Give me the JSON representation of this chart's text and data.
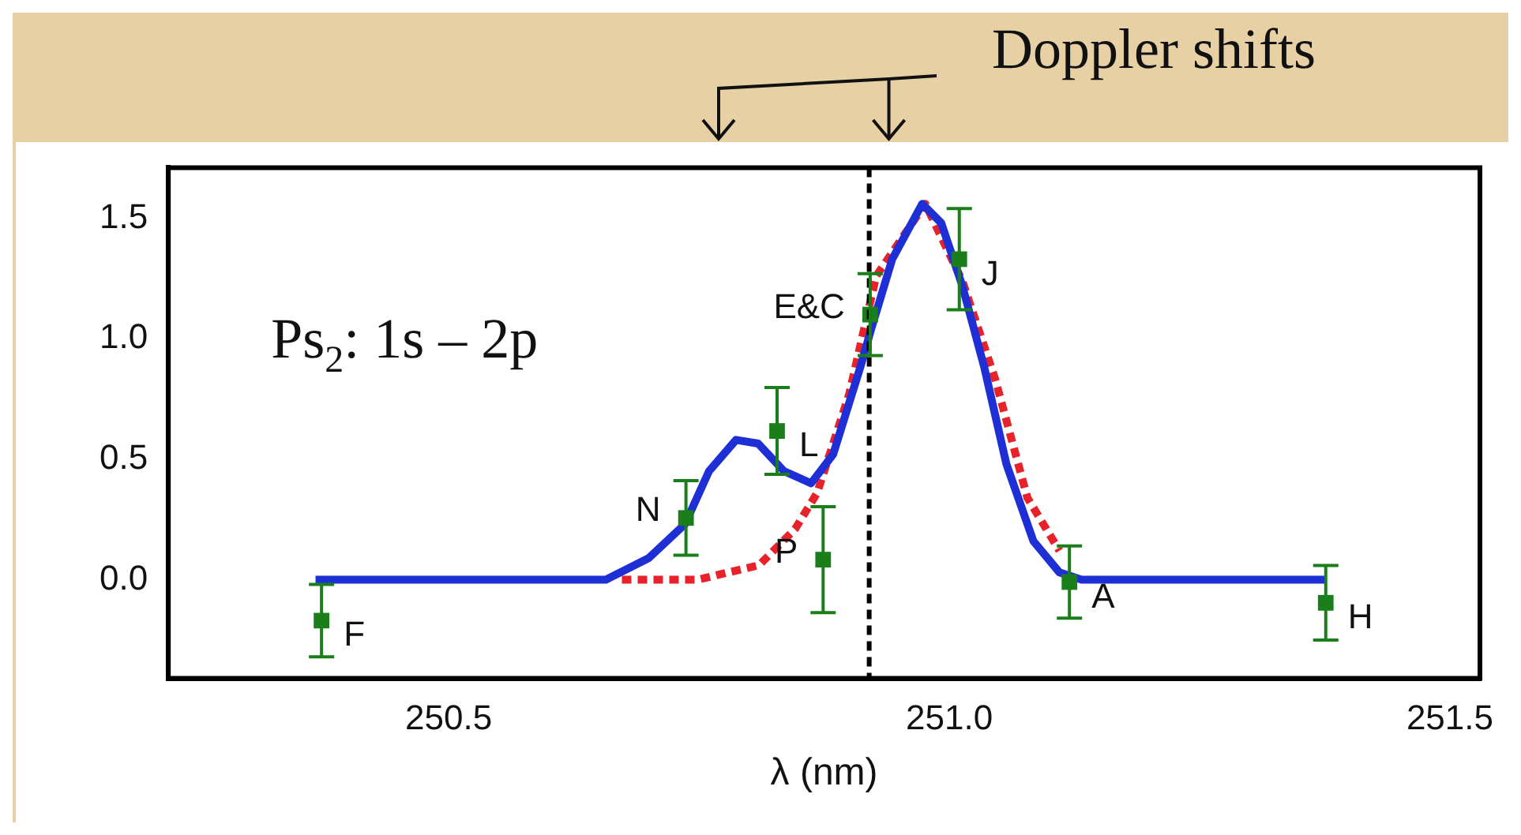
{
  "chart_data": {
    "type": "line",
    "xlabel": "λ (nm)",
    "xlim": [
      250.22,
      251.53
    ],
    "ylim": [
      -0.41,
      1.71
    ],
    "xticks": [
      250.5,
      {
        "value": 251,
        "label": "251.0"
      },
      251.5
    ],
    "yticks": [
      {
        "value": 0,
        "label": "0.0"
      },
      0.5,
      {
        "value": 1,
        "label": "1.0"
      },
      1.5
    ],
    "grid": false,
    "legend": false,
    "series": [
      {
        "type": "line",
        "color": "#1f2fd6",
        "x": [
          250.367,
          250.62,
          250.657,
          250.7,
          250.736,
          250.76,
          250.787,
          250.809,
          250.835,
          250.862,
          250.884,
          250.911,
          250.922,
          250.943,
          250.973,
          250.992,
          251.013,
          251.035,
          251.057,
          251.084,
          251.11,
          251.132,
          251.377
        ],
        "values": [
          0,
          0,
          0,
          0.09,
          0.23,
          0.45,
          0.58,
          0.565,
          0.45,
          0.4,
          0.52,
          0.88,
          1.04,
          1.33,
          1.56,
          1.48,
          1.22,
          0.88,
          0.48,
          0.16,
          0.03,
          0,
          0
        ]
      },
      {
        "type": "line",
        "color": "#e8222a",
        "line_style": "dashed",
        "x": [
          250.673,
          250.749,
          250.81,
          250.846,
          250.868,
          250.9,
          250.927,
          250.976,
          251.013,
          251.046,
          251.078,
          251.11
        ],
        "values": [
          0,
          0,
          0.06,
          0.21,
          0.36,
          0.77,
          1.26,
          1.56,
          1.24,
          0.83,
          0.34,
          0.12
        ]
      },
      {
        "type": "scatter",
        "color": "#1a7f1a",
        "marker": "square",
        "x": [
          250.373,
          250.737,
          250.828,
          250.874,
          250.921,
          251.01,
          251.12,
          251.376
        ],
        "values": [
          -0.17,
          0.256,
          0.617,
          0.083,
          1.1,
          1.33,
          -0.01,
          -0.096
        ],
        "errors": [
          0.15,
          0.155,
          0.18,
          0.22,
          0.17,
          0.21,
          0.15,
          0.155
        ]
      }
    ],
    "ref_lines": [
      {
        "axis": "x",
        "value": 250.92,
        "color": "#000000",
        "line_style": "dashed"
      }
    ],
    "annotations": [
      "Ps$_{2}$: 1s – 2p",
      "Doppler shifts",
      {
        "text": "F",
        "x": 250.373,
        "y": -0.17
      },
      {
        "text": "N",
        "x": 250.737,
        "y": 0.256
      },
      {
        "text": "L",
        "x": 250.828,
        "y": 0.617
      },
      {
        "text": "P",
        "x": 250.874,
        "y": 0.083
      },
      {
        "text": "E&C",
        "x": 250.921,
        "y": 1.1
      },
      {
        "text": "J",
        "x": 251.01,
        "y": 1.33
      },
      {
        "text": "A",
        "x": 251.12,
        "y": -0.01
      },
      {
        "text": "H",
        "x": 251.376,
        "y": -0.096
      }
    ]
  }
}
